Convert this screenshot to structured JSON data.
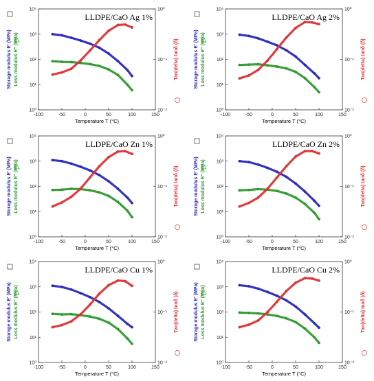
{
  "chart_data": [
    {
      "type": "line",
      "title": "LLDPE/CaO Ag 1%",
      "xlabel": "Temperature  T (°C)",
      "ylabel_storage": "Storage modulus  E′ (MPa)",
      "ylabel_loss": "Loss modulus  E″ (MPa)",
      "ylabel_right": "Tan(delta)  tanδ (δ)",
      "xlim": [
        -100,
        150
      ],
      "ylim_left": [
        1,
        10000
      ],
      "ylim_right": [
        0.01,
        1
      ],
      "y_scale": "log",
      "x_ticks": [
        "-100",
        "-50",
        "0",
        "50",
        "100",
        "150"
      ],
      "y_ticks_left": [
        "10⁰",
        "10¹",
        "10²",
        "10³",
        "10⁴"
      ],
      "y_ticks_right": [
        "10⁻²",
        "10⁻¹",
        "10⁰"
      ],
      "series": [
        {
          "id": "storage",
          "color": "#2a2ab8",
          "x": [
            -70,
            -50,
            -30,
            -10,
            10,
            30,
            50,
            70,
            90,
            100
          ],
          "values": [
            1000,
            900,
            720,
            560,
            420,
            290,
            170,
            85,
            38,
            22
          ]
        },
        {
          "id": "loss",
          "color": "#2e9a2e",
          "x": [
            -70,
            -50,
            -30,
            -10,
            10,
            30,
            50,
            70,
            90,
            100
          ],
          "values": [
            85,
            80,
            78,
            72,
            65,
            55,
            40,
            24,
            10,
            6
          ]
        },
        {
          "id": "tan",
          "color": "#dd3333",
          "axis": "right",
          "x": [
            -70,
            -50,
            -30,
            -10,
            10,
            30,
            50,
            70,
            85,
            100
          ],
          "values": [
            0.05,
            0.055,
            0.065,
            0.095,
            0.15,
            0.24,
            0.37,
            0.48,
            0.49,
            0.43
          ]
        }
      ]
    },
    {
      "type": "line",
      "title": "LLDPE/CaO Ag 2%",
      "xlabel": "Temperature  T (°C)",
      "ylabel_storage": "Storage modulus  E′ (MPa)",
      "ylabel_loss": "Loss modulus  E″ (MPa)",
      "ylabel_right": "Tan(delta)  tanδ (δ)",
      "xlim": [
        -100,
        150
      ],
      "ylim_left": [
        1,
        10000
      ],
      "ylim_right": [
        0.01,
        1
      ],
      "y_scale": "log",
      "x_ticks": [
        "-100",
        "-50",
        "0",
        "50",
        "100",
        "150"
      ],
      "y_ticks_left": [
        "10⁰",
        "10¹",
        "10²",
        "10³",
        "10⁴"
      ],
      "y_ticks_right": [
        "10⁻²",
        "10⁻¹",
        "10⁰"
      ],
      "series": [
        {
          "id": "storage",
          "color": "#2a2ab8",
          "x": [
            -70,
            -50,
            -30,
            -10,
            10,
            30,
            50,
            70,
            90,
            100
          ],
          "values": [
            950,
            850,
            680,
            500,
            360,
            230,
            130,
            60,
            28,
            18
          ]
        },
        {
          "id": "loss",
          "color": "#2e9a2e",
          "x": [
            -70,
            -50,
            -30,
            -10,
            10,
            30,
            50,
            70,
            90,
            100
          ],
          "values": [
            60,
            62,
            64,
            58,
            52,
            44,
            32,
            18,
            8,
            5
          ]
        },
        {
          "id": "tan",
          "color": "#dd3333",
          "axis": "right",
          "x": [
            -70,
            -50,
            -30,
            -10,
            10,
            30,
            50,
            70,
            85,
            100
          ],
          "values": [
            0.042,
            0.048,
            0.062,
            0.095,
            0.16,
            0.27,
            0.42,
            0.55,
            0.54,
            0.5
          ]
        }
      ]
    },
    {
      "type": "line",
      "title": "LLDPE/CaO Zn 1%",
      "xlabel": "Temperature  T (°C)",
      "ylabel_storage": "Storage modulus  E′ (MPa)",
      "ylabel_loss": "Loss modulus  E″ (MPa)",
      "ylabel_right": "Tan(delta)  tanδ (δ)",
      "xlim": [
        -100,
        150
      ],
      "ylim_left": [
        1,
        10000
      ],
      "ylim_right": [
        0.01,
        1
      ],
      "y_scale": "log",
      "x_ticks": [
        "-100",
        "-50",
        "0",
        "50",
        "100",
        "150"
      ],
      "y_ticks_left": [
        "10⁰",
        "10¹",
        "10²",
        "10³",
        "10⁴"
      ],
      "y_ticks_right": [
        "10⁻²",
        "10⁻¹",
        "10⁰"
      ],
      "series": [
        {
          "id": "storage",
          "color": "#2a2ab8",
          "x": [
            -70,
            -50,
            -30,
            -10,
            10,
            30,
            50,
            70,
            90,
            100
          ],
          "values": [
            1100,
            1000,
            800,
            600,
            430,
            280,
            160,
            80,
            36,
            22
          ]
        },
        {
          "id": "loss",
          "color": "#2e9a2e",
          "x": [
            -70,
            -50,
            -30,
            -10,
            10,
            30,
            50,
            70,
            90,
            100
          ],
          "values": [
            72,
            74,
            80,
            78,
            70,
            58,
            42,
            24,
            11,
            6
          ]
        },
        {
          "id": "tan",
          "color": "#dd3333",
          "axis": "right",
          "x": [
            -70,
            -50,
            -30,
            -10,
            10,
            30,
            50,
            70,
            85,
            100
          ],
          "values": [
            0.04,
            0.048,
            0.062,
            0.09,
            0.15,
            0.25,
            0.38,
            0.49,
            0.5,
            0.44
          ]
        }
      ]
    },
    {
      "type": "line",
      "title": "LLDPE/CaO Zn 2%",
      "xlabel": "Temperature  T (°C)",
      "ylabel_storage": "Storage modulus  E′ (MPa)",
      "ylabel_loss": "Loss modulus  E″ (MPa)",
      "ylabel_right": "Tan(delta)  tanδ (δ)",
      "xlim": [
        -100,
        150
      ],
      "ylim_left": [
        1,
        10000
      ],
      "ylim_right": [
        0.01,
        1
      ],
      "y_scale": "log",
      "x_ticks": [
        "-100",
        "-50",
        "0",
        "50",
        "100",
        "150"
      ],
      "y_ticks_left": [
        "10⁰",
        "10¹",
        "10²",
        "10³",
        "10⁴"
      ],
      "y_ticks_right": [
        "10⁻²",
        "10⁻¹",
        "10⁰"
      ],
      "series": [
        {
          "id": "storage",
          "color": "#2a2ab8",
          "x": [
            -70,
            -50,
            -30,
            -10,
            10,
            30,
            50,
            70,
            90,
            100
          ],
          "values": [
            1000,
            920,
            730,
            540,
            380,
            240,
            130,
            62,
            27,
            17
          ]
        },
        {
          "id": "loss",
          "color": "#2e9a2e",
          "x": [
            -70,
            -50,
            -30,
            -10,
            10,
            30,
            50,
            70,
            90,
            100
          ],
          "values": [
            70,
            72,
            78,
            74,
            66,
            52,
            36,
            20,
            9,
            5
          ]
        },
        {
          "id": "tan",
          "color": "#dd3333",
          "axis": "right",
          "x": [
            -70,
            -50,
            -30,
            -10,
            10,
            30,
            50,
            70,
            85,
            100
          ],
          "values": [
            0.04,
            0.047,
            0.06,
            0.09,
            0.15,
            0.25,
            0.39,
            0.5,
            0.5,
            0.45
          ]
        }
      ]
    },
    {
      "type": "line",
      "title": "LLDPE/CaO Cu 1%",
      "xlabel": "Temperature  T (°C)",
      "ylabel_storage": "Storage modulus  E′ (MPa)",
      "ylabel_loss": "Loss modulus  E″ (MPa)",
      "ylabel_right": "Tan(delta)  tanδ (δ)",
      "xlim": [
        -100,
        150
      ],
      "ylim_left": [
        1,
        10000
      ],
      "ylim_right": [
        0.01,
        1
      ],
      "y_scale": "log",
      "x_ticks": [
        "-100",
        "-50",
        "0",
        "50",
        "100",
        "150"
      ],
      "y_ticks_left": [
        "10⁰",
        "10¹",
        "10²",
        "10³",
        "10⁴"
      ],
      "y_ticks_right": [
        "10⁻²",
        "10⁻¹",
        "10⁰"
      ],
      "series": [
        {
          "id": "storage",
          "color": "#2a2ab8",
          "x": [
            -70,
            -50,
            -30,
            -10,
            10,
            30,
            50,
            70,
            90,
            100
          ],
          "values": [
            1100,
            980,
            780,
            560,
            390,
            250,
            140,
            70,
            34,
            25
          ]
        },
        {
          "id": "loss",
          "color": "#2e9a2e",
          "x": [
            -70,
            -50,
            -30,
            -10,
            10,
            30,
            50,
            70,
            90,
            100
          ],
          "values": [
            85,
            80,
            82,
            75,
            66,
            54,
            38,
            21,
            9,
            5.5
          ]
        },
        {
          "id": "tan",
          "color": "#dd3333",
          "axis": "right",
          "x": [
            -70,
            -50,
            -30,
            -10,
            10,
            30,
            50,
            70,
            85,
            100
          ],
          "values": [
            0.05,
            0.055,
            0.065,
            0.09,
            0.14,
            0.23,
            0.34,
            0.42,
            0.41,
            0.33
          ]
        }
      ]
    },
    {
      "type": "line",
      "title": "LLDPE/CaO Cu 2%",
      "xlabel": "Temperature  T (°C)",
      "ylabel_storage": "Storage modulus  E′ (MPa)",
      "ylabel_loss": "Loss modulus  E″ (MPa)",
      "ylabel_right": "Tan(delta)  tanδ (δ)",
      "xlim": [
        -100,
        150
      ],
      "ylim_left": [
        1,
        10000
      ],
      "ylim_right": [
        0.01,
        1
      ],
      "y_scale": "log",
      "x_ticks": [
        "-100",
        "-50",
        "0",
        "50",
        "100",
        "150"
      ],
      "y_ticks_left": [
        "10⁰",
        "10¹",
        "10²",
        "10³",
        "10⁴"
      ],
      "y_ticks_right": [
        "10⁻²",
        "10⁻¹",
        "10⁰"
      ],
      "series": [
        {
          "id": "storage",
          "color": "#2a2ab8",
          "x": [
            -70,
            -50,
            -30,
            -10,
            10,
            30,
            50,
            70,
            90,
            100
          ],
          "values": [
            1150,
            1050,
            840,
            620,
            440,
            290,
            165,
            80,
            36,
            24
          ]
        },
        {
          "id": "loss",
          "color": "#2e9a2e",
          "x": [
            -70,
            -50,
            -30,
            -10,
            10,
            30,
            50,
            70,
            90,
            100
          ],
          "values": [
            95,
            92,
            88,
            80,
            70,
            56,
            40,
            22,
            10,
            6
          ]
        },
        {
          "id": "tan",
          "color": "#dd3333",
          "axis": "right",
          "x": [
            -70,
            -50,
            -30,
            -10,
            10,
            30,
            50,
            70,
            85,
            100
          ],
          "values": [
            0.05,
            0.056,
            0.068,
            0.1,
            0.16,
            0.26,
            0.38,
            0.47,
            0.46,
            0.42
          ]
        }
      ]
    }
  ]
}
